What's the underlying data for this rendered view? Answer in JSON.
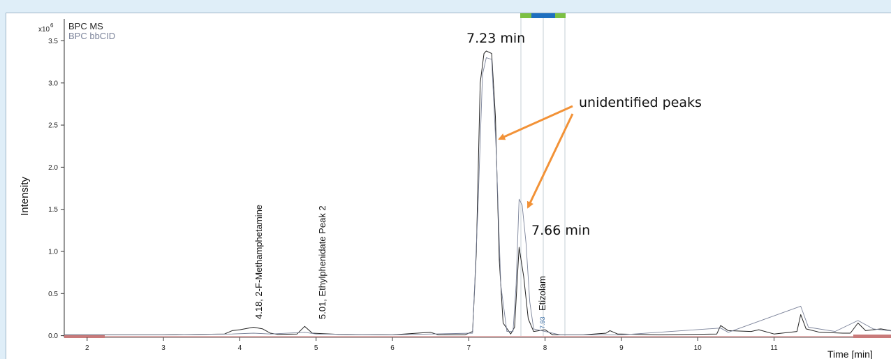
{
  "chart_data": {
    "type": "line",
    "title": "",
    "xlabel": "Time [min]",
    "ylabel": "Intensity",
    "y_multiplier": "x10",
    "y_multiplier_exp": "6",
    "xlim": [
      1.7,
      12.6
    ],
    "ylim": [
      -0.02,
      3.6
    ],
    "x_ticks": [
      "2",
      "3",
      "4",
      "5",
      "6",
      "7",
      "8",
      "9",
      "10",
      "11"
    ],
    "y_ticks": [
      "0.0",
      "0.5",
      "1.0",
      "1.5",
      "2.0",
      "2.5",
      "3.0",
      "3.5"
    ],
    "legend_position": "top-left",
    "series": [
      {
        "name": "BPC MS",
        "color": "#222222",
        "points": [
          [
            1.7,
            0.01
          ],
          [
            3.0,
            0.01
          ],
          [
            3.8,
            0.02
          ],
          [
            3.9,
            0.06
          ],
          [
            4.0,
            0.07
          ],
          [
            4.18,
            0.1
          ],
          [
            4.3,
            0.08
          ],
          [
            4.4,
            0.03
          ],
          [
            4.5,
            0.015
          ],
          [
            4.75,
            0.02
          ],
          [
            4.85,
            0.11
          ],
          [
            4.95,
            0.03
          ],
          [
            5.3,
            0.015
          ],
          [
            6.0,
            0.01
          ],
          [
            6.5,
            0.04
          ],
          [
            6.6,
            0.01
          ],
          [
            6.95,
            0.01
          ],
          [
            7.05,
            0.05
          ],
          [
            7.1,
            1.0
          ],
          [
            7.15,
            3.0
          ],
          [
            7.2,
            3.35
          ],
          [
            7.23,
            3.38
          ],
          [
            7.3,
            3.35
          ],
          [
            7.35,
            2.6
          ],
          [
            7.4,
            0.9
          ],
          [
            7.45,
            0.15
          ],
          [
            7.55,
            0.02
          ],
          [
            7.6,
            0.1
          ],
          [
            7.66,
            1.05
          ],
          [
            7.72,
            0.7
          ],
          [
            7.78,
            0.2
          ],
          [
            7.85,
            0.05
          ],
          [
            8.0,
            0.07
          ],
          [
            8.1,
            0.01
          ],
          [
            8.5,
            0.01
          ],
          [
            8.8,
            0.03
          ],
          [
            8.85,
            0.06
          ],
          [
            8.95,
            0.02
          ],
          [
            9.5,
            0.01
          ],
          [
            10.25,
            0.02
          ],
          [
            10.3,
            0.12
          ],
          [
            10.4,
            0.06
          ],
          [
            10.7,
            0.05
          ],
          [
            10.8,
            0.07
          ],
          [
            11.0,
            0.02
          ],
          [
            11.3,
            0.05
          ],
          [
            11.35,
            0.25
          ],
          [
            11.42,
            0.08
          ],
          [
            11.6,
            0.04
          ],
          [
            11.9,
            0.03
          ],
          [
            12.0,
            0.03
          ],
          [
            12.1,
            0.15
          ],
          [
            12.2,
            0.06
          ],
          [
            12.4,
            0.08
          ],
          [
            12.6,
            0.05
          ]
        ]
      },
      {
        "name": "BPC bbCID",
        "color": "#7a8299",
        "points": [
          [
            1.7,
            0.01
          ],
          [
            3.0,
            0.01
          ],
          [
            3.9,
            0.02
          ],
          [
            4.18,
            0.03
          ],
          [
            4.4,
            0.02
          ],
          [
            4.85,
            0.04
          ],
          [
            5.0,
            0.02
          ],
          [
            6.0,
            0.01
          ],
          [
            7.05,
            0.03
          ],
          [
            7.12,
            1.5
          ],
          [
            7.18,
            3.1
          ],
          [
            7.23,
            3.3
          ],
          [
            7.3,
            3.28
          ],
          [
            7.36,
            2.2
          ],
          [
            7.42,
            0.6
          ],
          [
            7.5,
            0.05
          ],
          [
            7.58,
            0.05
          ],
          [
            7.62,
            0.6
          ],
          [
            7.66,
            1.62
          ],
          [
            7.7,
            1.55
          ],
          [
            7.75,
            1.1
          ],
          [
            7.8,
            0.4
          ],
          [
            7.85,
            0.08
          ],
          [
            8.0,
            0.05
          ],
          [
            8.2,
            0.01
          ],
          [
            9.0,
            0.01
          ],
          [
            10.3,
            0.09
          ],
          [
            10.4,
            0.04
          ],
          [
            11.35,
            0.35
          ],
          [
            11.45,
            0.1
          ],
          [
            11.8,
            0.05
          ],
          [
            12.1,
            0.18
          ],
          [
            12.3,
            0.08
          ],
          [
            12.6,
            0.05
          ]
        ]
      }
    ],
    "annotations": {
      "peak_723": "7.23 min",
      "peak_766": "7.66 min",
      "unidentified": "unidentified peaks",
      "label_meth": "4.18, 2-F-Methamphetamine",
      "label_eth": "5.01, Ethylphenidate Peak 2",
      "label_etiz": "Etizolam",
      "label_793": "7.93"
    },
    "colors": {
      "arrow": "#f29237",
      "baseline_band": "#c97a7a",
      "top_marker_green": "#7cc043",
      "top_marker_blue": "#1e6fbf",
      "range_lines": "#c6cfd6"
    }
  }
}
